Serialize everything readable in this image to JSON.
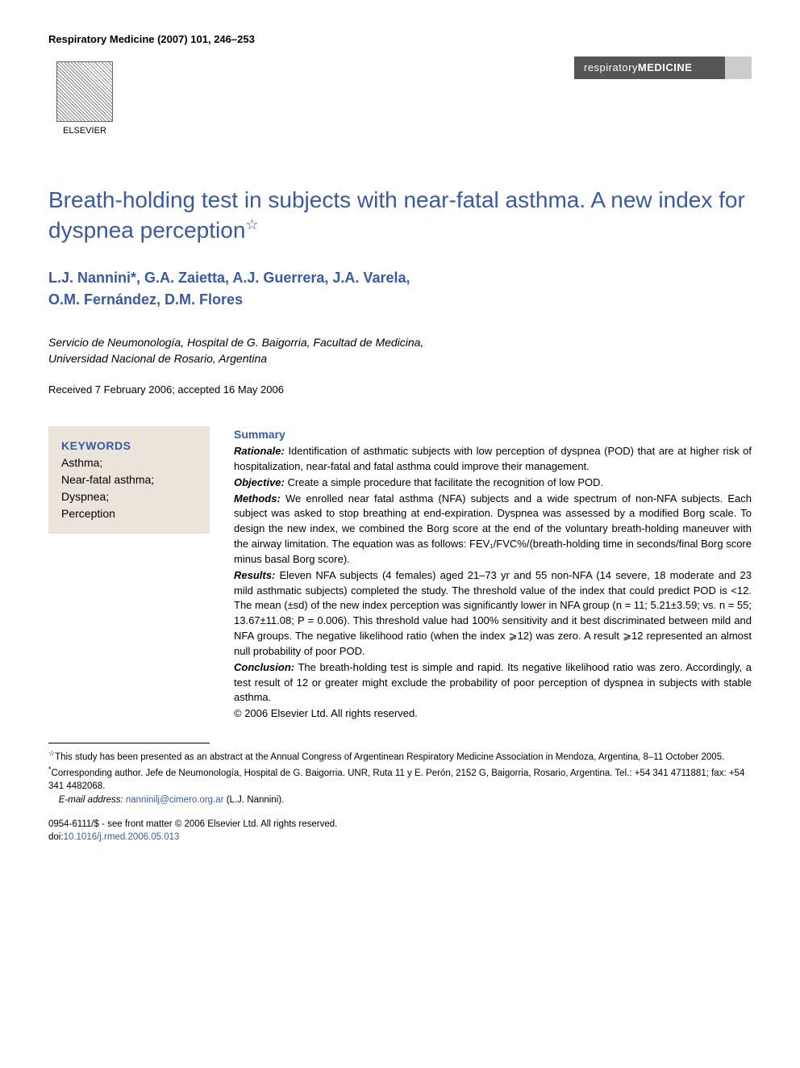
{
  "running_head": "Respiratory Medicine (2007) 101, 246–253",
  "publisher_name": "ELSEVIER",
  "journal_badge_light": "respiratory",
  "journal_badge_bold": "MEDICINE",
  "article": {
    "title": "Breath-holding test in subjects with near-fatal asthma. A new index for dyspnea perception",
    "title_note_marker": "☆",
    "authors_line1": "L.J. Nannini*, G.A. Zaietta, A.J. Guerrera, J.A. Varela,",
    "authors_line2": "O.M. Fernández, D.M. Flores",
    "affiliation_line1": "Servicio de Neumonología, Hospital de G. Baigorria, Facultad de Medicina,",
    "affiliation_line2": "Universidad Nacional de Rosario, Argentina",
    "dates": "Received 7 February 2006; accepted 16 May 2006"
  },
  "keywords": {
    "heading": "KEYWORDS",
    "items": [
      "Asthma;",
      "Near-fatal asthma;",
      "Dyspnea;",
      "Perception"
    ]
  },
  "abstract": {
    "heading": "Summary",
    "rationale_label": "Rationale:",
    "rationale": "Identification of asthmatic subjects with low perception of dyspnea (POD) that are at higher risk of hospitalization, near-fatal and fatal asthma could improve their management.",
    "objective_label": "Objective:",
    "objective": "Create a simple procedure that facilitate the recognition of low POD.",
    "methods_label": "Methods:",
    "methods": "We enrolled near fatal asthma (NFA) subjects and a wide spectrum of non-NFA subjects. Each subject was asked to stop breathing at end-expiration. Dyspnea was assessed by a modified Borg scale. To design the new index, we combined the Borg score at the end of the voluntary breath-holding maneuver with the airway limitation. The equation was as follows: FEV₁/FVC%/(breath-holding time in seconds/final Borg score minus basal Borg score).",
    "results_label": "Results:",
    "results": "Eleven NFA subjects (4 females) aged 21–73 yr and 55 non-NFA (14 severe, 18 moderate and 23 mild asthmatic subjects) completed the study. The threshold value of the index that could predict POD is <12. The mean (±sd) of the new index perception was significantly lower in NFA group (n = 11; 5.21±3.59; vs. n = 55; 13.67±11.08; P = 0.006). This threshold value had 100% sensitivity and it best discriminated between mild and NFA groups. The negative likelihood ratio (when the index ⩾12) was zero. A result ⩾12 represented an almost null probability of poor POD.",
    "conclusion_label": "Conclusion:",
    "conclusion": "The breath-holding test is simple and rapid. Its negative likelihood ratio was zero. Accordingly, a test result of 12 or greater might exclude the probability of poor perception of dyspnea in subjects with stable asthma.",
    "copyright": "© 2006 Elsevier Ltd. All rights reserved."
  },
  "footnotes": {
    "star_marker": "☆",
    "star_text": "This study has been presented as an abstract at the Annual Congress of Argentinean Respiratory Medicine Association in Mendoza, Argentina, 8–11 October 2005.",
    "corr_marker": "*",
    "corr_text": "Corresponding author. Jefe de Neumonología, Hospital de G. Baigorria. UNR, Ruta 11 y E. Perón, 2152 G, Baigorria, Rosario, Argentina. Tel.: +54 341 4711881; fax: +54 341 4482068.",
    "email_label": "E-mail address:",
    "email": "nanninilj@cimero.org.ar",
    "email_author": "(L.J. Nannini)."
  },
  "footer": {
    "front_matter": "0954-6111/$ - see front matter © 2006 Elsevier Ltd. All rights reserved.",
    "doi_label": "doi:",
    "doi": "10.1016/j.rmed.2006.05.013"
  },
  "colors": {
    "heading_blue": "#3a5aa0",
    "keywords_bg": "#ebe4da",
    "badge_dark": "#555555",
    "text": "#000000",
    "link_blue": "#3a5aa0"
  },
  "typography": {
    "title_fontsize": 28,
    "authors_fontsize": 18,
    "body_fontsize": 14,
    "abstract_fontsize": 13,
    "footnote_fontsize": 11.5,
    "running_head_fontsize": 13
  }
}
